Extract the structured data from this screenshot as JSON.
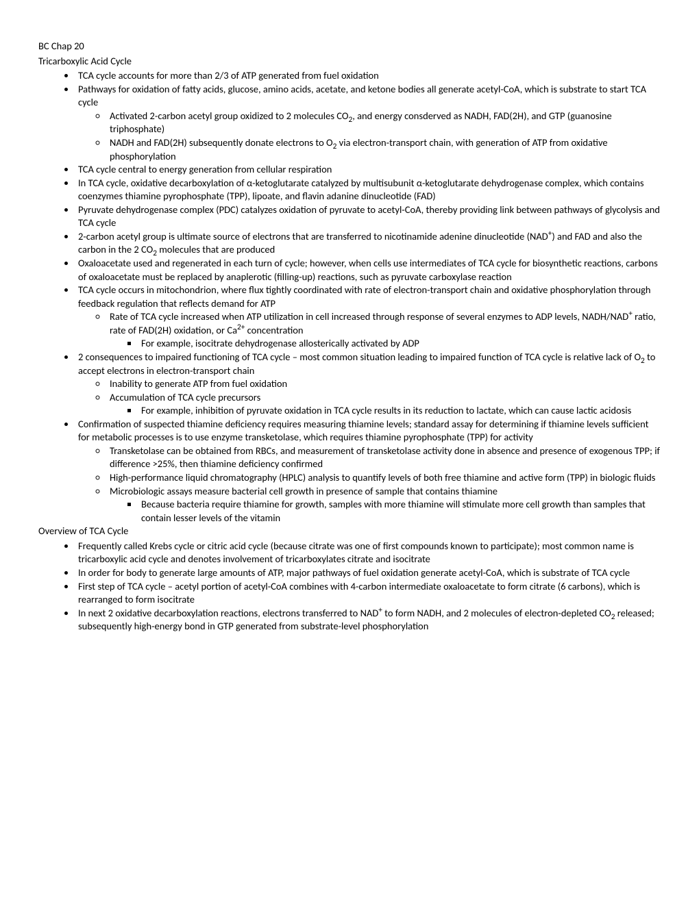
{
  "title1": "BC Chap 20",
  "title2": "Tricarboxylic Acid Cycle",
  "section1": [
    {
      "text": "TCA cycle accounts for more than 2/3 of ATP generated from fuel oxidation"
    },
    {
      "text": "Pathways for oxidation of fatty acids, glucose, amino acids, acetate, and ketone bodies all generate acetyl-CoA, which is substrate to start TCA cycle",
      "children": [
        {
          "html": "Activated 2-carbon acetyl group oxidized to 2 molecules CO<sub>2</sub>, and energy consderved as NADH, FAD(2H), and GTP (guanosine triphosphate)"
        },
        {
          "html": "NADH and FAD(2H) subsequently donate electrons to O<sub>2</sub> via electron-transport chain, with generation of ATP from oxidative phosphorylation"
        }
      ]
    },
    {
      "text": "TCA cycle central to energy generation from cellular respiration"
    },
    {
      "html": "In TCA cycle, oxidative decarboxylation of α-ketoglutarate catalyzed by multisubunit α-ketoglutarate dehydrogenase complex, which contains coenzymes thiamine pyrophosphate (TPP), lipoate, and flavin adanine dinucleotide (FAD)"
    },
    {
      "text": "Pyruvate dehydrogenase complex (PDC) catalyzes oxidation of pyruvate to acetyl-CoA, thereby providing link between pathways of glycolysis and TCA cycle"
    },
    {
      "html": "2-carbon acetyl group is ultimate source of electrons that are transferred to nicotinamide adenine dinucleotide (NAD<sup>+</sup>) and FAD and also the carbon in the 2 CO<sub>2</sub> molecules that are produced"
    },
    {
      "text": "Oxaloacetate used and regenerated in each turn of cycle; however, when cells use intermediates of TCA cycle for biosynthetic reactions, carbons of oxaloacetate must be replaced by anaplerotic (filling-up) reactions, such as pyruvate carboxylase reaction"
    },
    {
      "text": "TCA cycle occurs in mitochondrion, where flux tightly coordinated with rate of electron-transport chain and oxidative phosphorylation through feedback regulation that reflects demand for ATP",
      "children": [
        {
          "html": "Rate of TCA cycle increased when ATP utilization in cell increased through response of several enzymes to ADP levels, NADH/NAD<sup>+</sup> ratio, rate of FAD(2H) oxidation, or Ca<sup>2+</sup> concentration",
          "children": [
            {
              "text": "For example, isocitrate dehydrogenase allosterically activated by ADP"
            }
          ]
        }
      ]
    },
    {
      "html": "2 consequences to impaired functioning of TCA cycle – most common situation leading to impaired function of TCA cycle is relative lack of O<sub>2</sub> to accept electrons in electron-transport chain",
      "children": [
        {
          "text": "Inability to generate ATP from fuel oxidation"
        },
        {
          "text": "Accumulation of TCA cycle precursors",
          "children": [
            {
              "text": "For example, inhibition of pyruvate oxidation in TCA cycle results in its reduction to lactate, which can cause lactic acidosis"
            }
          ]
        }
      ]
    },
    {
      "text": "Confirmation of suspected thiamine deficiency requires measuring thiamine levels; standard assay for determining if thiamine levels sufficient for metabolic processes is to use enzyme transketolase, which requires thiamine pyrophosphate (TPP) for activity",
      "children": [
        {
          "text": "Transketolase can be obtained from RBCs, and measurement of transketolase activity done in absence and presence of exogenous TPP; if difference >25%, then thiamine deficiency confirmed"
        },
        {
          "text": "High-performance liquid chromatography (HPLC) analysis to quantify levels of both free thiamine and active form (TPP) in biologic fluids"
        },
        {
          "text": "Microbiologic assays measure bacterial cell growth in presence of sample that contains thiamine",
          "children": [
            {
              "text": "Because bacteria require thiamine for growth, samples with more thiamine will stimulate more cell growth than samples that contain lesser levels of the vitamin"
            }
          ]
        }
      ]
    }
  ],
  "title3": "Overview of TCA Cycle",
  "section2": [
    {
      "text": "Frequently called Krebs cycle or citric acid cycle (because citrate was one of first compounds known to participate); most common name is tricarboxylic acid cycle and denotes involvement of tricarboxylates citrate and isocitrate"
    },
    {
      "text": "In order for body to generate large amounts of ATP, major pathways of fuel oxidation generate acetyl-CoA, which is substrate of TCA cycle"
    },
    {
      "text": "First step of TCA cycle – acetyl portion of acetyl-CoA combines with 4-carbon intermediate oxaloacetate to form citrate (6 carbons), which is rearranged to form isocitrate"
    },
    {
      "html": "In next 2 oxidative decarboxylation reactions, electrons transferred to NAD<sup>+</sup> to form NADH, and 2 molecules of electron-depleted CO<sub>2</sub> released; subsequently high-energy bond in  GTP generated from substrate-level phosphorylation"
    }
  ]
}
